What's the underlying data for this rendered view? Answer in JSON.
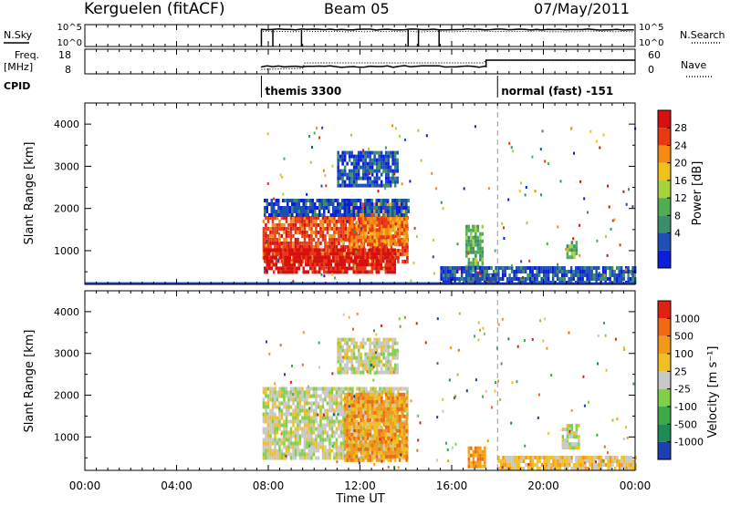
{
  "header": {
    "station": "Kerguelen (fitACF)",
    "beam": "Beam 05",
    "date": "07/May/2011"
  },
  "status_panels": {
    "nsky_label": "N.Sky",
    "nsky_ticks": [
      "10^5",
      "10^0"
    ],
    "nsearch_label": "N.Search",
    "nsearch_ticks": [
      "10^5",
      "10^0"
    ],
    "freq_label_line1": "Freq.",
    "freq_label_line2": "[MHz]",
    "freq_ticks": [
      "18",
      "8"
    ],
    "nave_label": "Nave",
    "nave_ticks": [
      "60",
      "0"
    ],
    "cpid_label": "CPID",
    "modes": [
      {
        "start": 7.7,
        "label": "themis 3300"
      },
      {
        "start": 18.0,
        "label": "normal (fast) -151"
      }
    ],
    "nsky_drops": [
      8.2,
      9.45,
      14.1,
      14.55,
      15.45
    ]
  },
  "chart_data": [
    {
      "type": "heatmap",
      "name": "Power",
      "ylabel": "Slant Range [km]",
      "ylim": [
        200,
        4500
      ],
      "yticks": [
        "1000",
        "2000",
        "3000",
        "4000"
      ],
      "colorbar_label": "Power [dB]",
      "colorbar_ticks": [
        "28",
        "24",
        "20",
        "16",
        "12",
        "8",
        "4"
      ],
      "colors": [
        "#0b1fd9",
        "#1f4fb5",
        "#3a8f6a",
        "#4fae53",
        "#a6d23d",
        "#f0c11a",
        "#f38a12",
        "#e83a12",
        "#d80f0f"
      ],
      "regions": [
        {
          "t0": 7.75,
          "t1": 14.05,
          "r0": 700,
          "r1": 1750,
          "level": 7
        },
        {
          "t0": 7.8,
          "t1": 13.5,
          "r0": 450,
          "r1": 1000,
          "level": 8
        },
        {
          "t0": 11.5,
          "t1": 14.0,
          "r0": 1100,
          "r1": 2100,
          "level": 6
        },
        {
          "t0": 11.0,
          "t1": 13.6,
          "r0": 2500,
          "r1": 3300,
          "level": 1
        },
        {
          "t0": 7.8,
          "t1": 14.1,
          "r0": 1800,
          "r1": 2150,
          "level": 1
        },
        {
          "t0": 16.6,
          "t1": 17.3,
          "r0": 400,
          "r1": 1600,
          "level": 3
        },
        {
          "t0": 16.8,
          "t1": 18.0,
          "r0": 250,
          "r1": 500,
          "level": 7
        },
        {
          "t0": 21.0,
          "t1": 21.4,
          "r0": 800,
          "r1": 1200,
          "level": 3
        },
        {
          "t0": 15.5,
          "t1": 24.0,
          "r0": 200,
          "r1": 600,
          "level": 1
        }
      ],
      "ground_scatter_line_km": 230,
      "dashed_marker_time": 18.0
    },
    {
      "type": "heatmap",
      "name": "Velocity",
      "ylabel": "Slant Range [km]",
      "ylim": [
        200,
        4500
      ],
      "yticks": [
        "1000",
        "2000",
        "3000",
        "4000"
      ],
      "colorbar_label": "Velocity [m s⁻¹]",
      "colorbar_ticks": [
        "1000",
        "500",
        "100",
        "25",
        "-25",
        "-100",
        "-500",
        "-1000"
      ],
      "colors": [
        "#1d3fb0",
        "#1f8a55",
        "#3fa84a",
        "#7fd04a",
        "#c8c8c8",
        "#f2bf22",
        "#f29a18",
        "#f06a12",
        "#e02010"
      ],
      "regions": [
        {
          "t0": 7.75,
          "t1": 14.05,
          "r0": 450,
          "r1": 2150,
          "level": 4
        },
        {
          "t0": 11.3,
          "t1": 14.0,
          "r0": 400,
          "r1": 2000,
          "level": 6
        },
        {
          "t0": 11.0,
          "t1": 13.6,
          "r0": 2500,
          "r1": 3300,
          "level": 4
        },
        {
          "t0": 16.7,
          "t1": 17.4,
          "r0": 250,
          "r1": 700,
          "level": 6
        },
        {
          "t0": 20.8,
          "t1": 21.5,
          "r0": 700,
          "r1": 1300,
          "level": 4
        },
        {
          "t0": 18.0,
          "t1": 24.0,
          "r0": 200,
          "r1": 500,
          "level": 5
        }
      ],
      "dashed_marker_time": 18.0
    }
  ],
  "time_axis": {
    "label": "Time UT",
    "ticks": [
      "00:00",
      "04:00",
      "08:00",
      "12:00",
      "16:00",
      "20:00",
      "00:00"
    ],
    "range_hours": [
      0,
      24
    ]
  }
}
